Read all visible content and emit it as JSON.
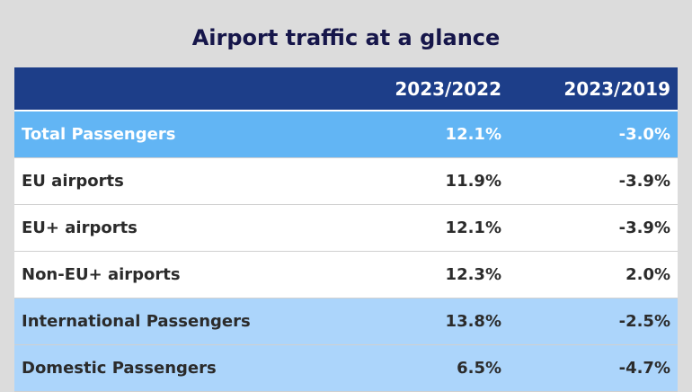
{
  "title": "Airport traffic at a glance",
  "table": {
    "header": [
      "",
      "2023/2022",
      "2023/2019"
    ],
    "rows": [
      [
        "Total Passengers",
        "12.1%",
        "-3.0%"
      ],
      [
        "EU airports",
        "11.9%",
        "-3.9%"
      ],
      [
        "EU+ airports",
        "12.1%",
        "-3.9%"
      ],
      [
        "Non-EU+ airports",
        "12.3%",
        "2.0%"
      ],
      [
        "International Passengers",
        "13.8%",
        "-2.5%"
      ],
      [
        "Domestic Passengers",
        "6.5%",
        "-4.7%"
      ]
    ]
  }
}
